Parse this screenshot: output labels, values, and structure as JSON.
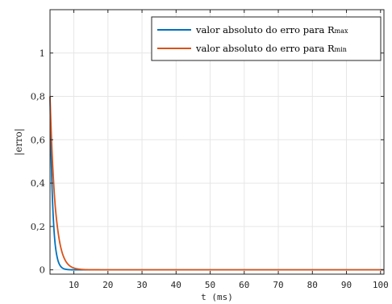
{
  "chart_data": {
    "type": "line",
    "xlabel": "t (ms)",
    "ylabel": "|erro|",
    "xlim": [
      3,
      101
    ],
    "ylim": [
      -0.02,
      1.2
    ],
    "xticks": [
      10,
      20,
      30,
      40,
      50,
      60,
      70,
      80,
      90,
      100
    ],
    "xtick_labels": [
      "10",
      "20",
      "30",
      "40",
      "50",
      "60",
      "70",
      "80",
      "90",
      "100"
    ],
    "yticks": [
      0,
      0.2,
      0.4,
      0.6,
      0.8,
      1
    ],
    "ytick_labels": [
      "0",
      "0,2",
      "0,4",
      "0,6",
      "0,8",
      "1"
    ],
    "grid": true,
    "legend_position": "top-right",
    "series": [
      {
        "name": "valor absoluto do erro para R",
        "subscript": "max",
        "color": "#0072BD",
        "x": [
          3.0,
          3.5,
          4.0,
          4.5,
          5.0,
          5.5,
          6.0,
          6.5,
          7.0,
          8.0,
          9.0,
          10.0,
          20.0,
          40.0,
          60.0,
          80.0,
          101.0
        ],
        "y": [
          0.8,
          0.43,
          0.23,
          0.12,
          0.066,
          0.035,
          0.019,
          0.01,
          0.0054,
          0.0016,
          0.0004,
          0.0001,
          0.0,
          0.0,
          0.0,
          0.0,
          0.0
        ]
      },
      {
        "name": "valor absoluto do erro para R",
        "subscript": "min",
        "color": "#D95319",
        "x": [
          3.0,
          3.5,
          4.0,
          4.5,
          5.0,
          5.5,
          6.0,
          6.5,
          7.0,
          7.5,
          8.0,
          9.0,
          10.0,
          11.0,
          12.0,
          15.0,
          20.0,
          40.0,
          60.0,
          80.0,
          101.0
        ],
        "y": [
          0.8,
          0.58,
          0.42,
          0.3,
          0.22,
          0.16,
          0.115,
          0.083,
          0.06,
          0.043,
          0.031,
          0.016,
          0.0085,
          0.0044,
          0.0023,
          0.0003,
          0.0,
          0.0,
          0.0,
          0.0,
          0.0
        ]
      }
    ]
  }
}
